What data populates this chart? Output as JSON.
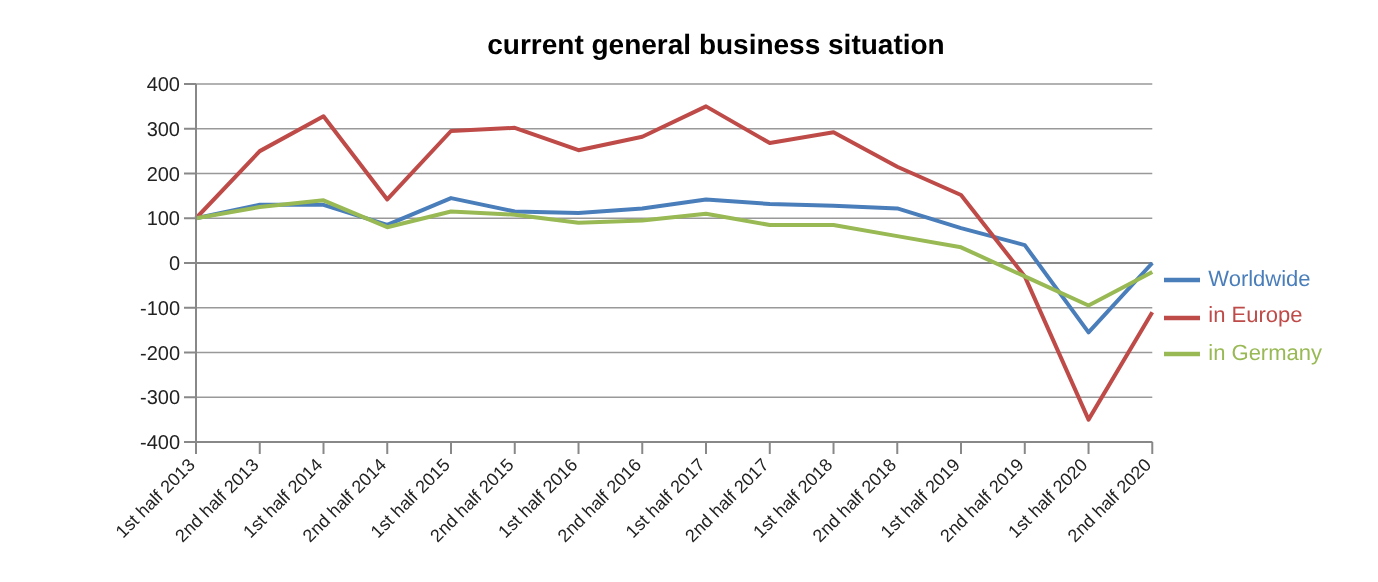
{
  "chart_data": {
    "type": "line",
    "title": "current general business situation",
    "categories": [
      "1st half 2013",
      "2nd half 2013",
      "1st half 2014",
      "2nd half 2014",
      "1st half 2015",
      "2nd half 2015",
      "1st half 2016",
      "2nd half 2016",
      "1st half 2017",
      "2nd half 2017",
      "1st half 2018",
      "2nd half 2018",
      "1st half 2019",
      "2nd half 2019",
      "1st half 2020",
      "2nd half 2020"
    ],
    "series": [
      {
        "name": "Worldwide",
        "color": "#4a7ebb",
        "values": [
          100,
          130,
          130,
          85,
          145,
          115,
          112,
          122,
          142,
          132,
          128,
          122,
          78,
          40,
          -155,
          0
        ]
      },
      {
        "name": "in Europe",
        "color": "#be4b48",
        "values": [
          100,
          250,
          328,
          142,
          295,
          302,
          252,
          282,
          350,
          268,
          292,
          215,
          152,
          -30,
          -350,
          -110
        ]
      },
      {
        "name": "in Germany",
        "color": "#98b954",
        "values": [
          100,
          125,
          140,
          80,
          115,
          108,
          90,
          95,
          110,
          85,
          85,
          60,
          35,
          -30,
          -95,
          -20
        ]
      }
    ],
    "ylim": [
      -400,
      400
    ],
    "yticks": [
      -400,
      -300,
      -200,
      -100,
      0,
      100,
      200,
      300,
      400
    ],
    "grid": "y",
    "legend": "right",
    "marker": "none",
    "line_style": "solid"
  }
}
